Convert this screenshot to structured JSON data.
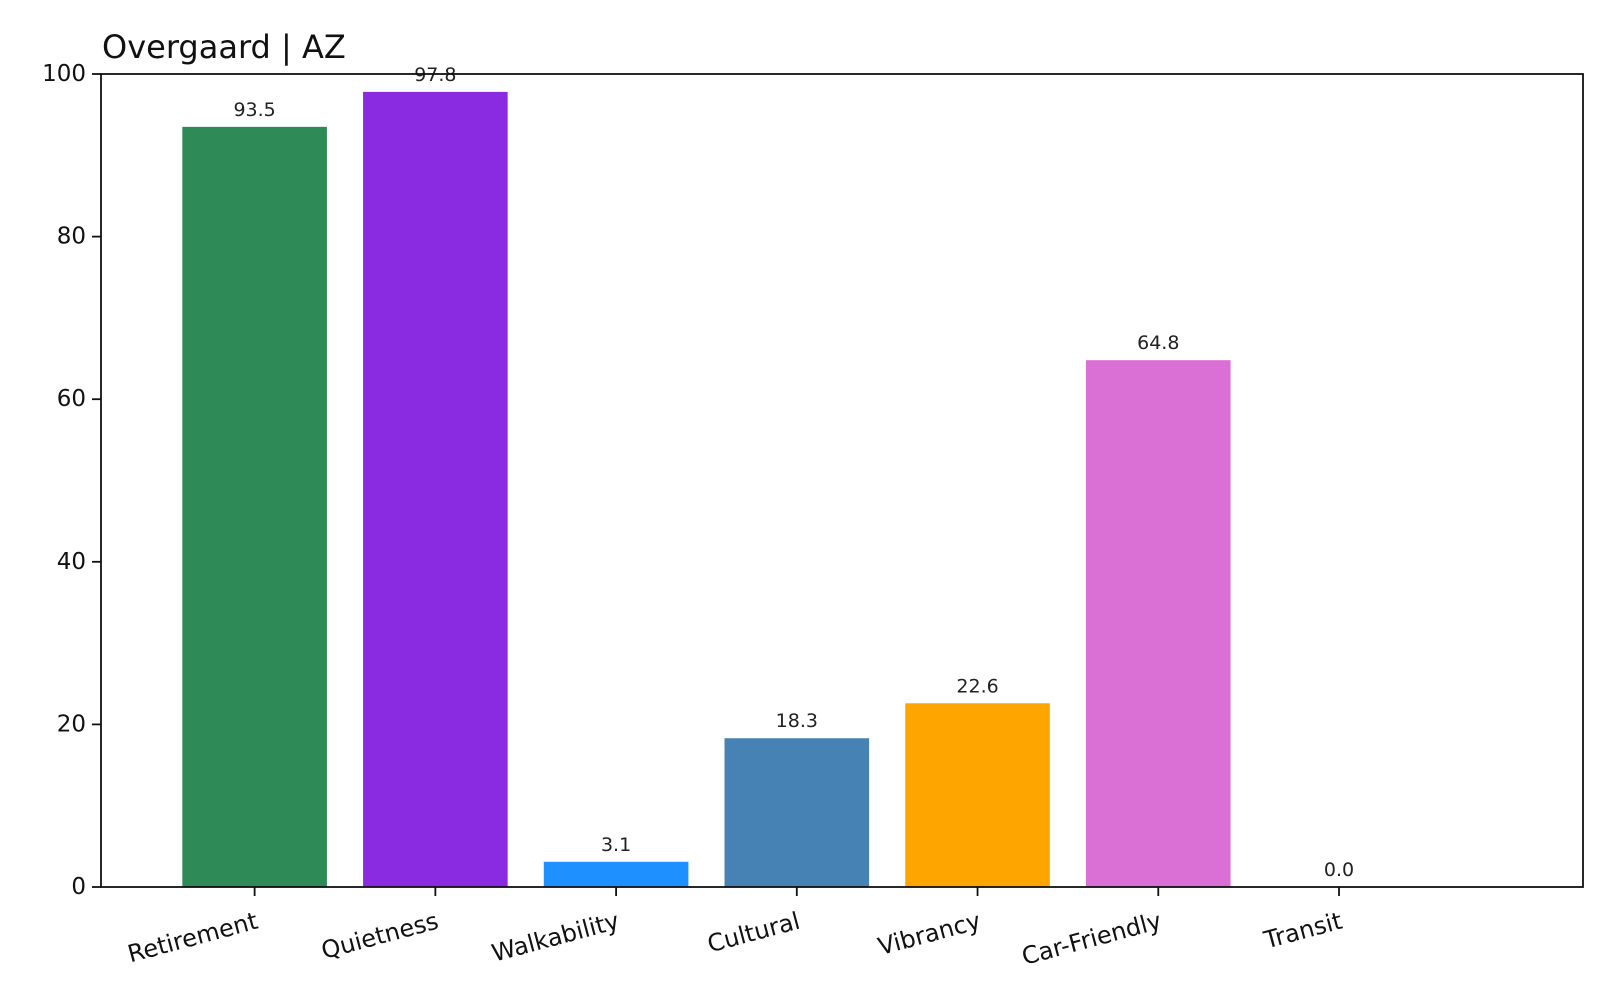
{
  "chart_data": {
    "type": "bar",
    "title": "Overgaard | AZ",
    "xlabel": "",
    "ylabel": "",
    "categories": [
      "Retirement",
      "Quietness",
      "Walkability",
      "Cultural",
      "Vibrancy",
      "Car-Friendly",
      "Transit"
    ],
    "values": [
      93.5,
      97.8,
      3.1,
      18.3,
      22.6,
      64.8,
      0.0
    ],
    "data_labels": [
      "93.5",
      "97.8",
      "3.1",
      "18.3",
      "22.6",
      "64.8",
      "0.0"
    ],
    "colors": [
      "#2e8b57",
      "#8a2be2",
      "#1e90ff",
      "#4682b4",
      "#ffa500",
      "#da70d6",
      "#4682b4"
    ],
    "ylim": [
      0,
      100
    ],
    "yticks": [
      0,
      20,
      40,
      60,
      80,
      100
    ],
    "ytick_labels": [
      "0",
      "20",
      "40",
      "60",
      "80",
      "100"
    ],
    "grid": false,
    "legend": "none"
  }
}
